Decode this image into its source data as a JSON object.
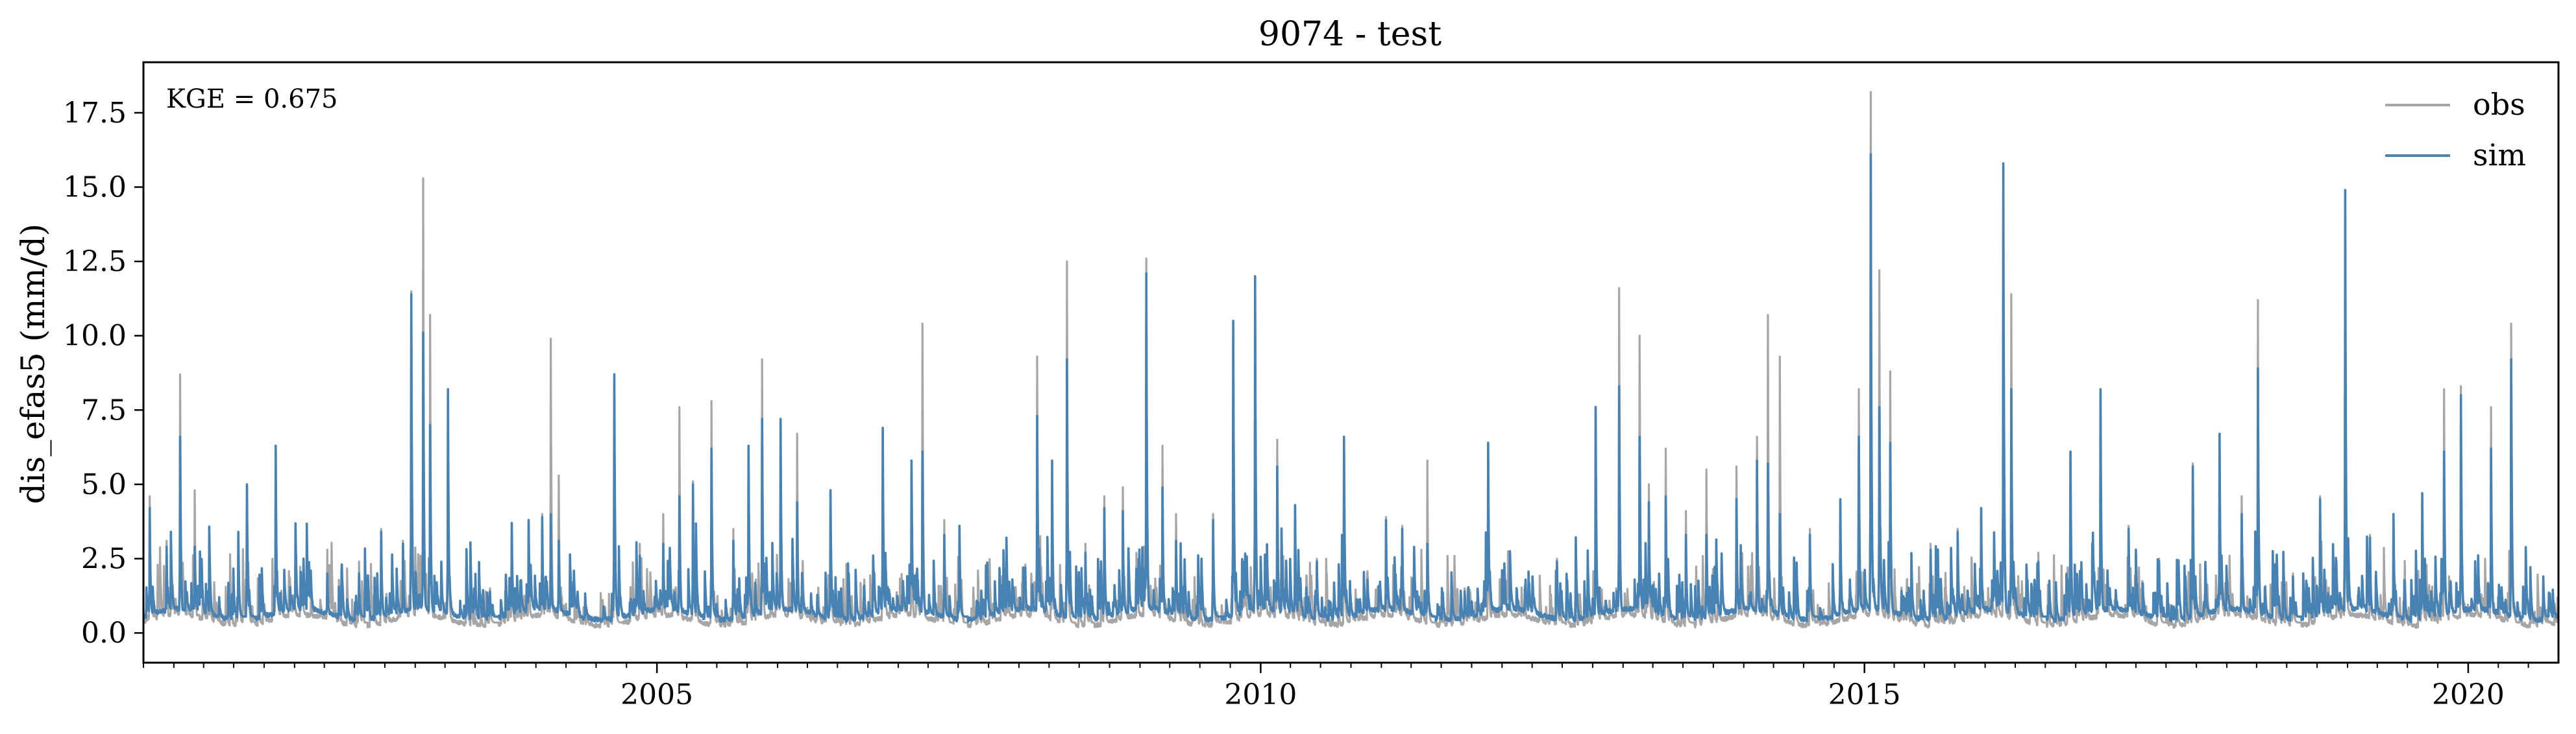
{
  "chart_data": {
    "type": "line",
    "title": "9074 - test",
    "xlabel": "",
    "ylabel": "dis_efas5 (mm/d)",
    "annotation": "KGE = 0.675",
    "x_range": [
      "2000-10-01",
      "2020-09-30"
    ],
    "ylim": [
      -1.0,
      19.2
    ],
    "y_ticks": [
      0.0,
      2.5,
      5.0,
      7.5,
      10.0,
      12.5,
      15.0,
      17.5
    ],
    "y_tick_labels": [
      "0.0",
      "2.5",
      "5.0",
      "7.5",
      "10.0",
      "12.5",
      "15.0",
      "17.5"
    ],
    "x_ticks": [
      "2005-01-01",
      "2010-01-01",
      "2015-01-01",
      "2020-01-01"
    ],
    "x_tick_labels": [
      "2005",
      "2010",
      "2015",
      "2020"
    ],
    "grid": false,
    "legend_position": "top-right",
    "series": [
      {
        "name": "obs",
        "color": "#a6a6a6",
        "baseline": 0.35,
        "peaks": [
          [
            "2000-10-20",
            4.6
          ],
          [
            "2000-12-10",
            3.1
          ],
          [
            "2001-01-20",
            8.7
          ],
          [
            "2001-03-05",
            4.8
          ],
          [
            "2001-04-20",
            2.5
          ],
          [
            "2001-07-15",
            3.4
          ],
          [
            "2001-08-10",
            5.0
          ],
          [
            "2001-11-05",
            6.3
          ],
          [
            "2002-02-20",
            1.6
          ],
          [
            "2002-04-10",
            2.8
          ],
          [
            "2002-07-15",
            2.4
          ],
          [
            "2002-09-20",
            3.5
          ],
          [
            "2002-11-25",
            3.1
          ],
          [
            "2002-12-20",
            11.5
          ],
          [
            "2003-01-25",
            15.3
          ],
          [
            "2003-02-15",
            10.7
          ],
          [
            "2003-04-10",
            8.2
          ],
          [
            "2003-08-15",
            1.5
          ],
          [
            "2003-10-20",
            3.5
          ],
          [
            "2003-12-10",
            3.8
          ],
          [
            "2004-01-20",
            4.0
          ],
          [
            "2004-02-15",
            9.9
          ],
          [
            "2004-03-10",
            5.3
          ],
          [
            "2004-08-25",
            8.6
          ],
          [
            "2004-11-10",
            3.0
          ],
          [
            "2005-01-20",
            4.0
          ],
          [
            "2005-03-10",
            7.6
          ],
          [
            "2005-04-20",
            5.1
          ],
          [
            "2005-06-15",
            7.8
          ],
          [
            "2005-08-20",
            3.5
          ],
          [
            "2005-10-05",
            6.3
          ],
          [
            "2005-11-15",
            9.2
          ],
          [
            "2006-01-10",
            7.1
          ],
          [
            "2006-03-01",
            6.7
          ],
          [
            "2006-06-10",
            4.8
          ],
          [
            "2006-09-20",
            1.8
          ],
          [
            "2006-11-15",
            6.9
          ],
          [
            "2007-02-10",
            4.8
          ],
          [
            "2007-03-15",
            10.4
          ],
          [
            "2007-05-20",
            3.8
          ],
          [
            "2007-07-05",
            3.6
          ],
          [
            "2007-11-10",
            1.7
          ],
          [
            "2008-01-20",
            2.3
          ],
          [
            "2008-02-25",
            9.3
          ],
          [
            "2008-04-10",
            4.1
          ],
          [
            "2008-05-25",
            12.5
          ],
          [
            "2008-07-20",
            3.0
          ],
          [
            "2008-09-15",
            4.6
          ],
          [
            "2008-11-10",
            4.9
          ],
          [
            "2009-01-20",
            12.6
          ],
          [
            "2009-03-10",
            6.3
          ],
          [
            "2009-04-20",
            4.0
          ],
          [
            "2009-08-10",
            4.0
          ],
          [
            "2009-10-10",
            10.5
          ],
          [
            "2009-12-15",
            12.0
          ],
          [
            "2010-02-20",
            6.5
          ],
          [
            "2010-04-15",
            4.3
          ],
          [
            "2010-06-20",
            2.5
          ],
          [
            "2010-09-10",
            6.6
          ],
          [
            "2011-01-15",
            3.9
          ],
          [
            "2011-03-05",
            3.6
          ],
          [
            "2011-05-20",
            5.8
          ],
          [
            "2011-09-10",
            1.5
          ],
          [
            "2011-11-20",
            6.4
          ],
          [
            "2012-03-10",
            1.6
          ],
          [
            "2012-06-15",
            2.5
          ],
          [
            "2012-10-10",
            7.6
          ],
          [
            "2012-12-20",
            11.6
          ],
          [
            "2013-02-20",
            10.0
          ],
          [
            "2013-03-20",
            5.0
          ],
          [
            "2013-05-10",
            6.2
          ],
          [
            "2013-07-10",
            4.1
          ],
          [
            "2013-09-10",
            5.5
          ],
          [
            "2013-12-10",
            5.6
          ],
          [
            "2014-02-10",
            6.6
          ],
          [
            "2014-03-15",
            10.7
          ],
          [
            "2014-04-20",
            9.3
          ],
          [
            "2014-07-20",
            3.5
          ],
          [
            "2014-10-20",
            4.5
          ],
          [
            "2014-12-15",
            8.2
          ],
          [
            "2015-01-20",
            18.2
          ],
          [
            "2015-02-15",
            12.2
          ],
          [
            "2015-03-20",
            8.8
          ],
          [
            "2015-07-20",
            3.0
          ],
          [
            "2015-10-10",
            3.5
          ],
          [
            "2015-12-20",
            4.2
          ],
          [
            "2016-02-25",
            15.6
          ],
          [
            "2016-03-20",
            11.4
          ],
          [
            "2016-06-10",
            2.7
          ],
          [
            "2016-09-15",
            6.1
          ],
          [
            "2016-12-15",
            8.0
          ],
          [
            "2017-03-10",
            3.6
          ],
          [
            "2017-06-10",
            2.5
          ],
          [
            "2017-09-20",
            5.7
          ],
          [
            "2017-12-10",
            6.7
          ],
          [
            "2018-02-15",
            4.6
          ],
          [
            "2018-04-05",
            11.2
          ],
          [
            "2018-07-20",
            2.0
          ],
          [
            "2018-10-10",
            4.6
          ],
          [
            "2018-12-25",
            10.6
          ],
          [
            "2019-03-10",
            3.3
          ],
          [
            "2019-05-20",
            4.0
          ],
          [
            "2019-08-15",
            4.7
          ],
          [
            "2019-10-20",
            8.2
          ],
          [
            "2019-12-10",
            8.3
          ],
          [
            "2020-03-10",
            7.6
          ],
          [
            "2020-05-10",
            10.4
          ],
          [
            "2020-08-15",
            1.8
          ]
        ]
      },
      {
        "name": "sim",
        "color": "#4682b4",
        "baseline": 0.55,
        "peaks": [
          [
            "2000-10-20",
            4.2
          ],
          [
            "2000-12-10",
            2.9
          ],
          [
            "2001-01-20",
            6.6
          ],
          [
            "2001-03-05",
            2.9
          ],
          [
            "2001-04-20",
            1.9
          ],
          [
            "2001-07-15",
            3.4
          ],
          [
            "2001-08-10",
            5.0
          ],
          [
            "2001-11-05",
            6.3
          ],
          [
            "2002-02-20",
            1.8
          ],
          [
            "2002-04-10",
            2.0
          ],
          [
            "2002-07-15",
            2.0
          ],
          [
            "2002-09-20",
            3.4
          ],
          [
            "2002-11-25",
            3.0
          ],
          [
            "2002-12-20",
            11.4
          ],
          [
            "2003-01-25",
            10.1
          ],
          [
            "2003-02-15",
            7.0
          ],
          [
            "2003-04-10",
            8.2
          ],
          [
            "2003-08-15",
            1.4
          ],
          [
            "2003-10-20",
            3.7
          ],
          [
            "2003-12-10",
            3.8
          ],
          [
            "2004-01-20",
            3.9
          ],
          [
            "2004-02-15",
            4.0
          ],
          [
            "2004-03-10",
            3.1
          ],
          [
            "2004-08-25",
            8.7
          ],
          [
            "2004-11-10",
            2.6
          ],
          [
            "2005-01-20",
            3.0
          ],
          [
            "2005-03-10",
            4.6
          ],
          [
            "2005-04-20",
            5.0
          ],
          [
            "2005-06-15",
            6.2
          ],
          [
            "2005-08-20",
            3.1
          ],
          [
            "2005-10-05",
            6.3
          ],
          [
            "2005-11-15",
            7.2
          ],
          [
            "2006-01-10",
            7.2
          ],
          [
            "2006-03-01",
            4.4
          ],
          [
            "2006-06-10",
            4.8
          ],
          [
            "2006-09-20",
            1.6
          ],
          [
            "2006-11-15",
            6.9
          ],
          [
            "2007-02-10",
            5.8
          ],
          [
            "2007-03-15",
            6.1
          ],
          [
            "2007-05-20",
            3.3
          ],
          [
            "2007-07-05",
            3.6
          ],
          [
            "2007-11-10",
            1.6
          ],
          [
            "2008-01-20",
            2.2
          ],
          [
            "2008-02-25",
            7.3
          ],
          [
            "2008-04-10",
            5.8
          ],
          [
            "2008-05-25",
            9.2
          ],
          [
            "2008-07-20",
            2.7
          ],
          [
            "2008-09-15",
            4.2
          ],
          [
            "2008-11-10",
            4.1
          ],
          [
            "2009-01-20",
            12.1
          ],
          [
            "2009-03-10",
            4.9
          ],
          [
            "2009-04-20",
            3.1
          ],
          [
            "2009-08-10",
            3.8
          ],
          [
            "2009-10-10",
            10.5
          ],
          [
            "2009-12-15",
            12.0
          ],
          [
            "2010-02-20",
            5.6
          ],
          [
            "2010-04-15",
            4.3
          ],
          [
            "2010-06-20",
            2.4
          ],
          [
            "2010-09-10",
            6.6
          ],
          [
            "2011-01-15",
            3.8
          ],
          [
            "2011-03-05",
            3.5
          ],
          [
            "2011-05-20",
            3.0
          ],
          [
            "2011-09-10",
            1.4
          ],
          [
            "2011-11-20",
            6.4
          ],
          [
            "2012-03-10",
            1.5
          ],
          [
            "2012-06-15",
            2.4
          ],
          [
            "2012-10-10",
            7.6
          ],
          [
            "2012-12-20",
            8.3
          ],
          [
            "2013-02-20",
            6.6
          ],
          [
            "2013-03-20",
            4.4
          ],
          [
            "2013-05-10",
            4.6
          ],
          [
            "2013-07-10",
            3.3
          ],
          [
            "2013-09-10",
            3.3
          ],
          [
            "2013-12-10",
            4.5
          ],
          [
            "2014-02-10",
            5.8
          ],
          [
            "2014-03-15",
            5.7
          ],
          [
            "2014-04-20",
            4.0
          ],
          [
            "2014-07-20",
            3.3
          ],
          [
            "2014-10-20",
            4.5
          ],
          [
            "2014-12-15",
            6.6
          ],
          [
            "2015-01-20",
            16.1
          ],
          [
            "2015-02-15",
            7.6
          ],
          [
            "2015-03-20",
            6.4
          ],
          [
            "2015-07-20",
            2.8
          ],
          [
            "2015-10-10",
            3.4
          ],
          [
            "2015-12-20",
            4.2
          ],
          [
            "2016-02-25",
            15.8
          ],
          [
            "2016-03-20",
            8.2
          ],
          [
            "2016-06-10",
            2.4
          ],
          [
            "2016-09-15",
            6.1
          ],
          [
            "2016-12-15",
            8.2
          ],
          [
            "2017-03-10",
            3.5
          ],
          [
            "2017-06-10",
            2.4
          ],
          [
            "2017-09-20",
            5.6
          ],
          [
            "2017-12-10",
            6.7
          ],
          [
            "2018-02-15",
            4.0
          ],
          [
            "2018-04-05",
            8.9
          ],
          [
            "2018-07-20",
            1.9
          ],
          [
            "2018-10-10",
            4.5
          ],
          [
            "2018-12-25",
            14.9
          ],
          [
            "2019-03-10",
            3.2
          ],
          [
            "2019-05-20",
            4.0
          ],
          [
            "2019-08-15",
            4.7
          ],
          [
            "2019-10-20",
            6.1
          ],
          [
            "2019-12-10",
            8.0
          ],
          [
            "2020-03-10",
            6.2
          ],
          [
            "2020-05-10",
            9.2
          ],
          [
            "2020-08-15",
            1.9
          ]
        ]
      }
    ]
  }
}
